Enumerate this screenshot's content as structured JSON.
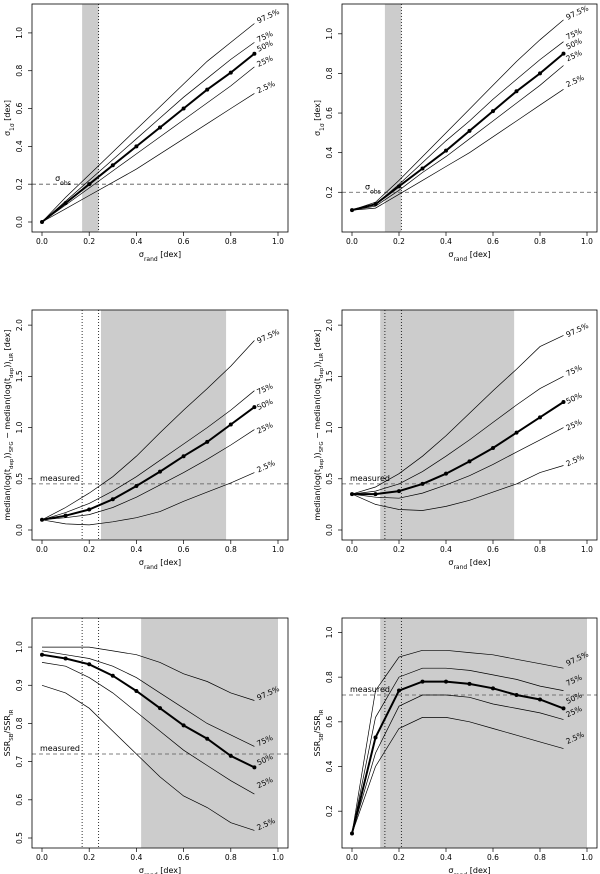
{
  "chart_data": [
    {
      "type": "line",
      "panel": "top-left",
      "xlabel_base": "σ",
      "xlabel_sub": "rand",
      "xlabel_unit": " [dex]",
      "ylabel_base": "σ",
      "ylabel_sub": "1σ",
      "ylabel_unit": " [dex]",
      "xlim": [
        0,
        1
      ],
      "ylim": [
        0,
        1.1
      ],
      "xticks": [
        "0.0",
        "0.2",
        "0.4",
        "0.6",
        "0.8",
        "1.0"
      ],
      "yticks": [
        0.0,
        0.2,
        0.4,
        0.6,
        0.8,
        1.0
      ],
      "ytick_labels": [
        "0.0",
        "0.2",
        "0.4",
        "0.6",
        "0.8",
        "1.0"
      ],
      "shade": [
        0.17,
        0.24
      ],
      "dotted_x": [
        0.24
      ],
      "hline": 0.2,
      "ref_label_base": "σ",
      "ref_label_sub": "obs",
      "ref_label_x": 0.03,
      "x": [
        0,
        0.1,
        0.2,
        0.3,
        0.4,
        0.5,
        0.6,
        0.7,
        0.8,
        0.9
      ],
      "series": [
        {
          "name": "97.5%",
          "values": [
            0,
            0.13,
            0.25,
            0.37,
            0.49,
            0.61,
            0.73,
            0.85,
            0.95,
            1.05
          ],
          "ly": 1.05
        },
        {
          "name": "75%",
          "values": [
            0,
            0.11,
            0.22,
            0.33,
            0.44,
            0.55,
            0.66,
            0.76,
            0.86,
            0.95
          ],
          "ly": 0.95
        },
        {
          "name": "50%",
          "values": [
            0,
            0.1,
            0.2,
            0.3,
            0.4,
            0.5,
            0.6,
            0.7,
            0.79,
            0.89
          ],
          "ly": 0.9
        },
        {
          "name": "25%",
          "values": [
            0,
            0.09,
            0.18,
            0.27,
            0.36,
            0.45,
            0.54,
            0.63,
            0.72,
            0.82
          ],
          "ly": 0.82
        },
        {
          "name": "2.5%",
          "values": [
            0,
            0.07,
            0.14,
            0.21,
            0.28,
            0.36,
            0.44,
            0.52,
            0.6,
            0.68
          ],
          "ly": 0.68
        }
      ]
    },
    {
      "type": "line",
      "panel": "top-right",
      "xlabel_base": "σ",
      "xlabel_sub": "rand",
      "xlabel_unit": " [dex]",
      "ylabel_base": "σ",
      "ylabel_sub": "1σ",
      "ylabel_unit": " [dex]",
      "xlim": [
        0,
        1
      ],
      "ylim": [
        0.05,
        1.1
      ],
      "xticks": [
        "0.0",
        "0.2",
        "0.4",
        "0.6",
        "0.8",
        "1.0"
      ],
      "yticks": [
        0.2,
        0.4,
        0.6,
        0.8,
        1.0
      ],
      "ytick_labels": [
        "0.2",
        "0.4",
        "0.6",
        "0.8",
        "1.0"
      ],
      "shade": [
        0.14,
        0.21
      ],
      "dotted_x": [
        0.21
      ],
      "hline": 0.2,
      "ref_label_base": "σ",
      "ref_label_sub": "obs",
      "ref_label_x": 0.03,
      "x": [
        0,
        0.1,
        0.2,
        0.3,
        0.4,
        0.5,
        0.6,
        0.7,
        0.8,
        0.9
      ],
      "series": [
        {
          "name": "97.5%",
          "values": [
            0.11,
            0.15,
            0.26,
            0.38,
            0.5,
            0.62,
            0.74,
            0.86,
            0.97,
            1.07
          ],
          "ly": 1.07
        },
        {
          "name": "75%",
          "values": [
            0.11,
            0.14,
            0.24,
            0.35,
            0.46,
            0.56,
            0.67,
            0.77,
            0.87,
            0.96
          ],
          "ly": 0.97
        },
        {
          "name": "50%",
          "values": [
            0.11,
            0.14,
            0.23,
            0.32,
            0.41,
            0.51,
            0.61,
            0.71,
            0.8,
            0.9
          ],
          "ly": 0.92
        },
        {
          "name": "25%",
          "values": [
            0.11,
            0.13,
            0.21,
            0.3,
            0.38,
            0.47,
            0.56,
            0.65,
            0.74,
            0.84
          ],
          "ly": 0.86
        },
        {
          "name": "2.5%",
          "values": [
            0.11,
            0.12,
            0.19,
            0.26,
            0.33,
            0.4,
            0.48,
            0.56,
            0.64,
            0.72
          ],
          "ly": 0.73
        }
      ]
    },
    {
      "type": "line",
      "panel": "middle-left",
      "xlabel_base": "σ",
      "xlabel_sub": "rand",
      "xlabel_unit": " [dex]",
      "ylabel_text": "median(log(t_dep))_SFG − median(log(t_dep))_LIR [dex]",
      "xlim": [
        0,
        1
      ],
      "ylim": [
        0,
        2.05
      ],
      "xticks": [
        "0.0",
        "0.2",
        "0.4",
        "0.6",
        "0.8",
        "1.0"
      ],
      "yticks": [
        0.0,
        0.5,
        1.0,
        1.5,
        2.0
      ],
      "ytick_labels": [
        "0.0",
        "0.5",
        "1.0",
        "1.5",
        "2.0"
      ],
      "shade": [
        0.25,
        0.78
      ],
      "dotted_x": [
        0.17,
        0.24
      ],
      "hline": 0.45,
      "ref_label": "measured",
      "ref_label_x": 0.0,
      "x": [
        0,
        0.1,
        0.2,
        0.3,
        0.4,
        0.5,
        0.6,
        0.7,
        0.8,
        0.9
      ],
      "series": [
        {
          "name": "97.5%",
          "values": [
            0.1,
            0.22,
            0.36,
            0.52,
            0.72,
            0.95,
            1.17,
            1.38,
            1.6,
            1.85
          ],
          "ly": 1.82
        },
        {
          "name": "75%",
          "values": [
            0.1,
            0.17,
            0.26,
            0.38,
            0.52,
            0.68,
            0.84,
            1.0,
            1.17,
            1.36
          ],
          "ly": 1.32
        },
        {
          "name": "50%",
          "values": [
            0.1,
            0.14,
            0.2,
            0.3,
            0.43,
            0.57,
            0.72,
            0.86,
            1.03,
            1.2
          ],
          "ly": 1.17
        },
        {
          "name": "25%",
          "values": [
            0.1,
            0.12,
            0.15,
            0.22,
            0.32,
            0.44,
            0.56,
            0.69,
            0.83,
            0.98
          ],
          "ly": 0.94
        },
        {
          "name": "2.5%",
          "values": [
            0.1,
            0.06,
            0.05,
            0.08,
            0.12,
            0.18,
            0.28,
            0.37,
            0.46,
            0.56
          ],
          "ly": 0.56
        }
      ]
    },
    {
      "type": "line",
      "panel": "middle-right",
      "xlabel_base": "σ",
      "xlabel_sub": "rand",
      "xlabel_unit": " [dex]",
      "ylabel_text": "median(log(t_dep))_SFG − median(log(t_dep))_LIR [dex]",
      "xlim": [
        0,
        1
      ],
      "ylim": [
        0,
        2.05
      ],
      "xticks": [
        "0.0",
        "0.2",
        "0.4",
        "0.6",
        "0.8",
        "1.0"
      ],
      "yticks": [
        0.0,
        0.5,
        1.0,
        1.5,
        2.0
      ],
      "ytick_labels": [
        "0.0",
        "0.5",
        "1.0",
        "1.5",
        "2.0"
      ],
      "shade": [
        0.12,
        0.69
      ],
      "dotted_x": [
        0.14,
        0.21
      ],
      "hline": 0.45,
      "ref_label": "measured",
      "ref_label_x": 0.0,
      "x": [
        0,
        0.1,
        0.2,
        0.3,
        0.4,
        0.5,
        0.6,
        0.7,
        0.8,
        0.9
      ],
      "series": [
        {
          "name": "97.5%",
          "values": [
            0.35,
            0.42,
            0.55,
            0.72,
            0.92,
            1.14,
            1.36,
            1.57,
            1.79,
            1.9
          ],
          "ly": 1.88
        },
        {
          "name": "75%",
          "values": [
            0.35,
            0.38,
            0.45,
            0.57,
            0.72,
            0.88,
            1.05,
            1.22,
            1.38,
            1.5
          ],
          "ly": 1.5
        },
        {
          "name": "50%",
          "values": [
            0.35,
            0.35,
            0.38,
            0.45,
            0.55,
            0.67,
            0.8,
            0.95,
            1.1,
            1.25
          ],
          "ly": 1.23
        },
        {
          "name": "25%",
          "values": [
            0.35,
            0.32,
            0.31,
            0.36,
            0.44,
            0.53,
            0.64,
            0.76,
            0.88,
            1.0
          ],
          "ly": 0.97
        },
        {
          "name": "2.5%",
          "values": [
            0.35,
            0.25,
            0.2,
            0.19,
            0.23,
            0.29,
            0.37,
            0.45,
            0.56,
            0.63
          ],
          "ly": 0.62
        }
      ]
    },
    {
      "type": "line",
      "panel": "bottom-left",
      "xlabel_base": "σ",
      "xlabel_sub": "rand",
      "xlabel_unit": " [dex]",
      "ylabel_text": "SSR_SB/SSR_IR",
      "xlim": [
        0,
        1
      ],
      "ylim": [
        0.5,
        1.05
      ],
      "xticks": [
        "0.0",
        "0.2",
        "0.4",
        "0.6",
        "0.8",
        "1.0"
      ],
      "yticks": [
        0.5,
        0.6,
        0.7,
        0.8,
        0.9,
        1.0
      ],
      "ytick_labels": [
        "0.5",
        "0.6",
        "0.7",
        "0.8",
        "0.9",
        "1.0"
      ],
      "shade": [
        0.42,
        1.0
      ],
      "dotted_x": [
        0.17,
        0.24
      ],
      "hline": 0.72,
      "ref_label": "measured",
      "ref_label_x": 0.0,
      "x": [
        0,
        0.1,
        0.2,
        0.3,
        0.4,
        0.5,
        0.6,
        0.7,
        0.8,
        0.9
      ],
      "series": [
        {
          "name": "97.5%",
          "values": [
            1.0,
            1.0,
            1.0,
            0.99,
            0.98,
            0.96,
            0.93,
            0.91,
            0.88,
            0.86
          ],
          "ly": 0.86
        },
        {
          "name": "75%",
          "values": [
            0.99,
            0.98,
            0.97,
            0.95,
            0.92,
            0.88,
            0.84,
            0.8,
            0.77,
            0.74
          ],
          "ly": 0.74
        },
        {
          "name": "50%",
          "values": [
            0.98,
            0.97,
            0.955,
            0.925,
            0.885,
            0.84,
            0.795,
            0.76,
            0.715,
            0.685
          ],
          "ly": 0.69
        },
        {
          "name": "25%",
          "values": [
            0.96,
            0.95,
            0.92,
            0.88,
            0.83,
            0.78,
            0.73,
            0.69,
            0.65,
            0.615
          ],
          "ly": 0.63
        },
        {
          "name": "2.5%",
          "values": [
            0.9,
            0.88,
            0.84,
            0.78,
            0.72,
            0.66,
            0.61,
            0.58,
            0.54,
            0.52
          ],
          "ly": 0.52
        }
      ]
    },
    {
      "type": "line",
      "panel": "bottom-right",
      "xlabel_base": "σ",
      "xlabel_sub": "rand",
      "xlabel_unit": " [dex]",
      "ylabel_text": "SSR_SB/SSR_IR",
      "xlim": [
        0,
        1
      ],
      "ylim": [
        0.08,
        1.02
      ],
      "xticks": [
        "0.0",
        "0.2",
        "0.4",
        "0.6",
        "0.8",
        "1.0"
      ],
      "yticks": [
        0.2,
        0.4,
        0.6,
        0.8,
        1.0
      ],
      "ytick_labels": [
        "0.2",
        "0.4",
        "0.6",
        "0.8",
        "1.0"
      ],
      "shade": [
        0.12,
        1.0
      ],
      "dotted_x": [
        0.14,
        0.21
      ],
      "hline": 0.72,
      "ref_label": "measured",
      "ref_label_x": 0.0,
      "x": [
        0,
        0.1,
        0.2,
        0.3,
        0.4,
        0.5,
        0.6,
        0.7,
        0.8,
        0.9
      ],
      "series": [
        {
          "name": "97.5%",
          "values": [
            0.1,
            0.74,
            0.89,
            0.92,
            0.92,
            0.91,
            0.9,
            0.88,
            0.86,
            0.84
          ],
          "ly": 0.85
        },
        {
          "name": "75%",
          "values": [
            0.1,
            0.62,
            0.8,
            0.84,
            0.84,
            0.83,
            0.81,
            0.79,
            0.76,
            0.74
          ],
          "ly": 0.76
        },
        {
          "name": "50%",
          "values": [
            0.1,
            0.53,
            0.74,
            0.78,
            0.78,
            0.77,
            0.75,
            0.72,
            0.7,
            0.66
          ],
          "ly": 0.68
        },
        {
          "name": "25%",
          "values": [
            0.1,
            0.46,
            0.67,
            0.72,
            0.72,
            0.71,
            0.68,
            0.66,
            0.64,
            0.61
          ],
          "ly": 0.62
        },
        {
          "name": "2.5%",
          "values": [
            0.1,
            0.4,
            0.57,
            0.62,
            0.62,
            0.6,
            0.57,
            0.54,
            0.51,
            0.48
          ],
          "ly": 0.5
        }
      ]
    }
  ]
}
